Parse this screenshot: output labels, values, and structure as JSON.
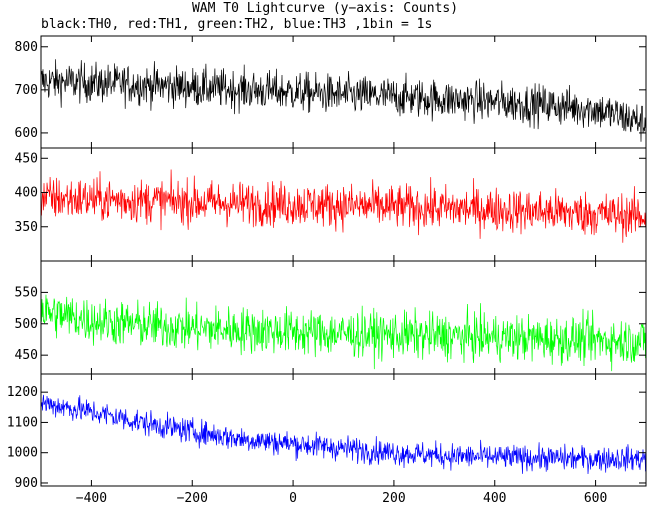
{
  "chart_data": {
    "type": "line",
    "title": "WAM T0 Lightcurve (y−axis: Counts)",
    "subtitle": "black:TH0, red:TH1, green:TH2, blue:TH3 ,1bin = 1s",
    "xlim": [
      -500,
      700
    ],
    "x_ticks": [
      -400,
      -200,
      0,
      200,
      400,
      600
    ],
    "x_tick_labels": [
      "−400",
      "−200",
      "0",
      "200",
      "400",
      "600"
    ],
    "grid": false,
    "legend": "none (series identified in subtitle)",
    "series": [
      {
        "name": "TH0",
        "color": "#000000",
        "ylim": [
          565,
          825
        ],
        "yticks": [
          600,
          700,
          800
        ],
        "x": [
          -500,
          -400,
          -300,
          -200,
          -100,
          0,
          100,
          200,
          300,
          400,
          500,
          600,
          700
        ],
        "values": [
          720,
          716,
          712,
          706,
          700,
          695,
          688,
          684,
          678,
          672,
          665,
          655,
          622
        ],
        "noise_range": 50
      },
      {
        "name": "TH1",
        "color": "#ff0000",
        "ylim": [
          300,
          465
        ],
        "yticks": [
          350,
          400,
          450
        ],
        "x": [
          -500,
          -400,
          -300,
          -200,
          -100,
          0,
          100,
          200,
          300,
          400,
          500,
          600,
          700
        ],
        "values": [
          392,
          390,
          388,
          386,
          384,
          383,
          381,
          379,
          377,
          375,
          372,
          369,
          365
        ],
        "noise_range": 35
      },
      {
        "name": "TH2",
        "color": "#00ff00",
        "ylim": [
          420,
          600
        ],
        "yticks": [
          450,
          500,
          550
        ],
        "x": [
          -500,
          -400,
          -300,
          -200,
          -100,
          0,
          100,
          200,
          300,
          400,
          500,
          600,
          700
        ],
        "values": [
          520,
          505,
          498,
          493,
          490,
          487,
          484,
          482,
          480,
          478,
          476,
          474,
          472
        ],
        "noise_range": 40
      },
      {
        "name": "TH3",
        "color": "#0000ff",
        "ylim": [
          890,
          1260
        ],
        "yticks": [
          900,
          1000,
          1100,
          1200
        ],
        "x": [
          -500,
          -400,
          -300,
          -200,
          -100,
          0,
          100,
          200,
          300,
          400,
          500,
          600,
          700
        ],
        "values": [
          1165,
          1135,
          1100,
          1070,
          1045,
          1030,
          1015,
          1000,
          990,
          985,
          982,
          980,
          980
        ],
        "noise_range": 45
      }
    ]
  }
}
